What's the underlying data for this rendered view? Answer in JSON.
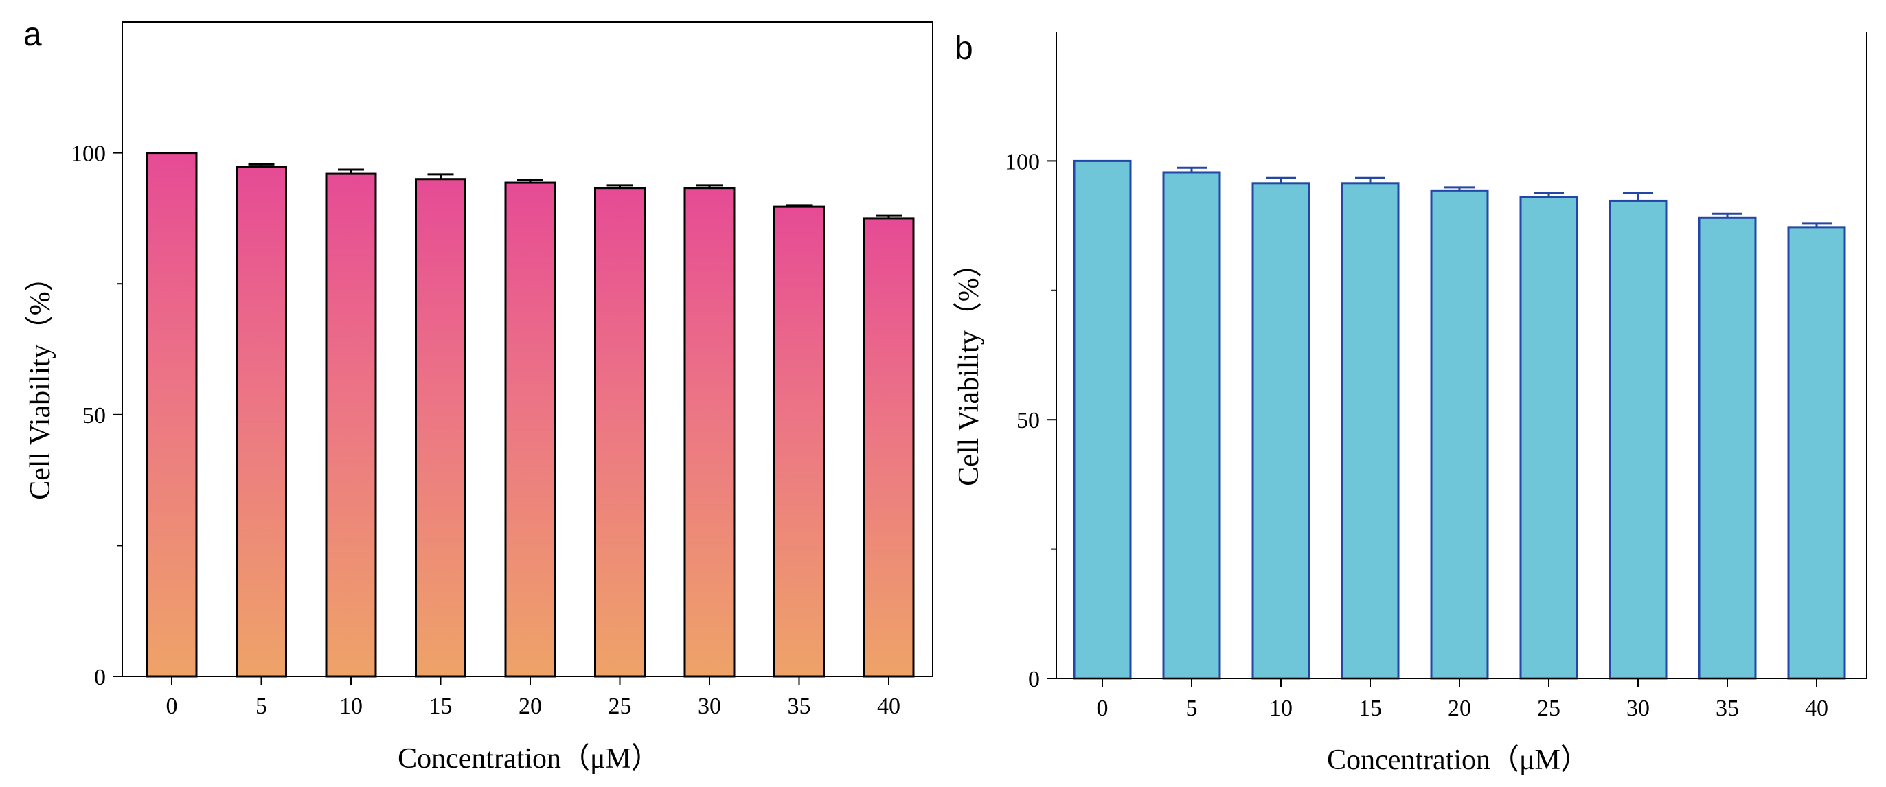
{
  "chart_data": [
    {
      "type": "bar",
      "panel_label": "a",
      "title": "",
      "xlabel": "Concentration（μM）",
      "ylabel": "Cell Viability（%）",
      "categories": [
        "0",
        "5",
        "10",
        "15",
        "20",
        "25",
        "30",
        "35",
        "40"
      ],
      "values": [
        100,
        97.3,
        96.0,
        95.0,
        94.3,
        93.3,
        93.3,
        89.7,
        87.5
      ],
      "errors": [
        0,
        0.5,
        0.8,
        0.9,
        0.6,
        0.5,
        0.5,
        0.3,
        0.5
      ],
      "yticks": [
        "0",
        "50",
        "100"
      ],
      "ylim": [
        0,
        125
      ],
      "grid": false,
      "legend": "none",
      "colors": {
        "fill_top": "#e64b95",
        "fill_mid": "#ec7585",
        "fill_bottom": "#eea368",
        "edge": "#000000",
        "error_bar": "#000000"
      }
    },
    {
      "type": "bar",
      "panel_label": "b",
      "title": "",
      "xlabel": "Concentration（μM）",
      "ylabel": "Cell Viability（%）",
      "categories": [
        "0",
        "5",
        "10",
        "15",
        "20",
        "25",
        "30",
        "35",
        "40"
      ],
      "values": [
        100,
        97.8,
        95.7,
        95.7,
        94.3,
        93.0,
        92.3,
        89.0,
        87.2
      ],
      "errors": [
        0,
        0.9,
        1.0,
        1.0,
        0.6,
        0.8,
        1.5,
        0.8,
        0.8
      ],
      "yticks": [
        "0",
        "50",
        "100"
      ],
      "ylim": [
        0,
        125
      ],
      "grid": false,
      "legend": "none",
      "colors": {
        "fill_top": "#6fc6d8",
        "fill_mid": "#6fc6d8",
        "fill_bottom": "#6fc6d8",
        "edge": "#2347a6",
        "error_bar": "#2347a6"
      }
    }
  ]
}
